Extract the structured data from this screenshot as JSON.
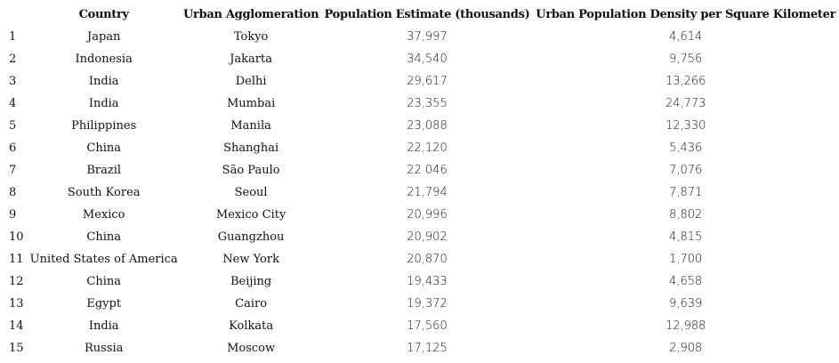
{
  "table": {
    "headers": [
      "",
      "Country",
      "Urban Agglomeration",
      "Population Estimate (thousands)",
      "Urban Population Density per Square Kilometer"
    ],
    "rows": [
      {
        "rank": "1",
        "country": "Japan",
        "city": "Tokyo",
        "population": "37,997",
        "density": "4,614"
      },
      {
        "rank": "2",
        "country": "Indonesia",
        "city": "Jakarta",
        "population": "34,540",
        "density": "9,756"
      },
      {
        "rank": "3",
        "country": "India",
        "city": "Delhi",
        "population": "29,617",
        "density": "13,266"
      },
      {
        "rank": "4",
        "country": "India",
        "city": "Mumbai",
        "population": "23,355",
        "density": "24,773"
      },
      {
        "rank": "5",
        "country": "Philippines",
        "city": "Manila",
        "population": "23,088",
        "density": "12,330"
      },
      {
        "rank": "6",
        "country": "China",
        "city": "Shanghai",
        "population": "22,120",
        "density": "5,436"
      },
      {
        "rank": "7",
        "country": "Brazil",
        "city": "São Paulo",
        "population": "22 046",
        "density": "7,076"
      },
      {
        "rank": "8",
        "country": "South Korea",
        "city": "Seoul",
        "population": "21,794",
        "density": "7,871"
      },
      {
        "rank": "9",
        "country": "Mexico",
        "city": "Mexico City",
        "population": "20,996",
        "density": "8,802"
      },
      {
        "rank": "10",
        "country": "China",
        "city": "Guangzhou",
        "population": "20,902",
        "density": "4,815"
      },
      {
        "rank": "11",
        "country": "United States of America",
        "city": "New York",
        "population": "20,870",
        "density": "1,700"
      },
      {
        "rank": "12",
        "country": "China",
        "city": "Beijing",
        "population": "19,433",
        "density": "4,658"
      },
      {
        "rank": "13",
        "country": "Egypt",
        "city": "Cairo",
        "population": "19,372",
        "density": "9,639"
      },
      {
        "rank": "14",
        "country": "India",
        "city": "Kolkata",
        "population": "17,560",
        "density": "12,988"
      },
      {
        "rank": "15",
        "country": "Russia",
        "city": "Moscow",
        "population": "17,125",
        "density": "2,908"
      }
    ]
  }
}
